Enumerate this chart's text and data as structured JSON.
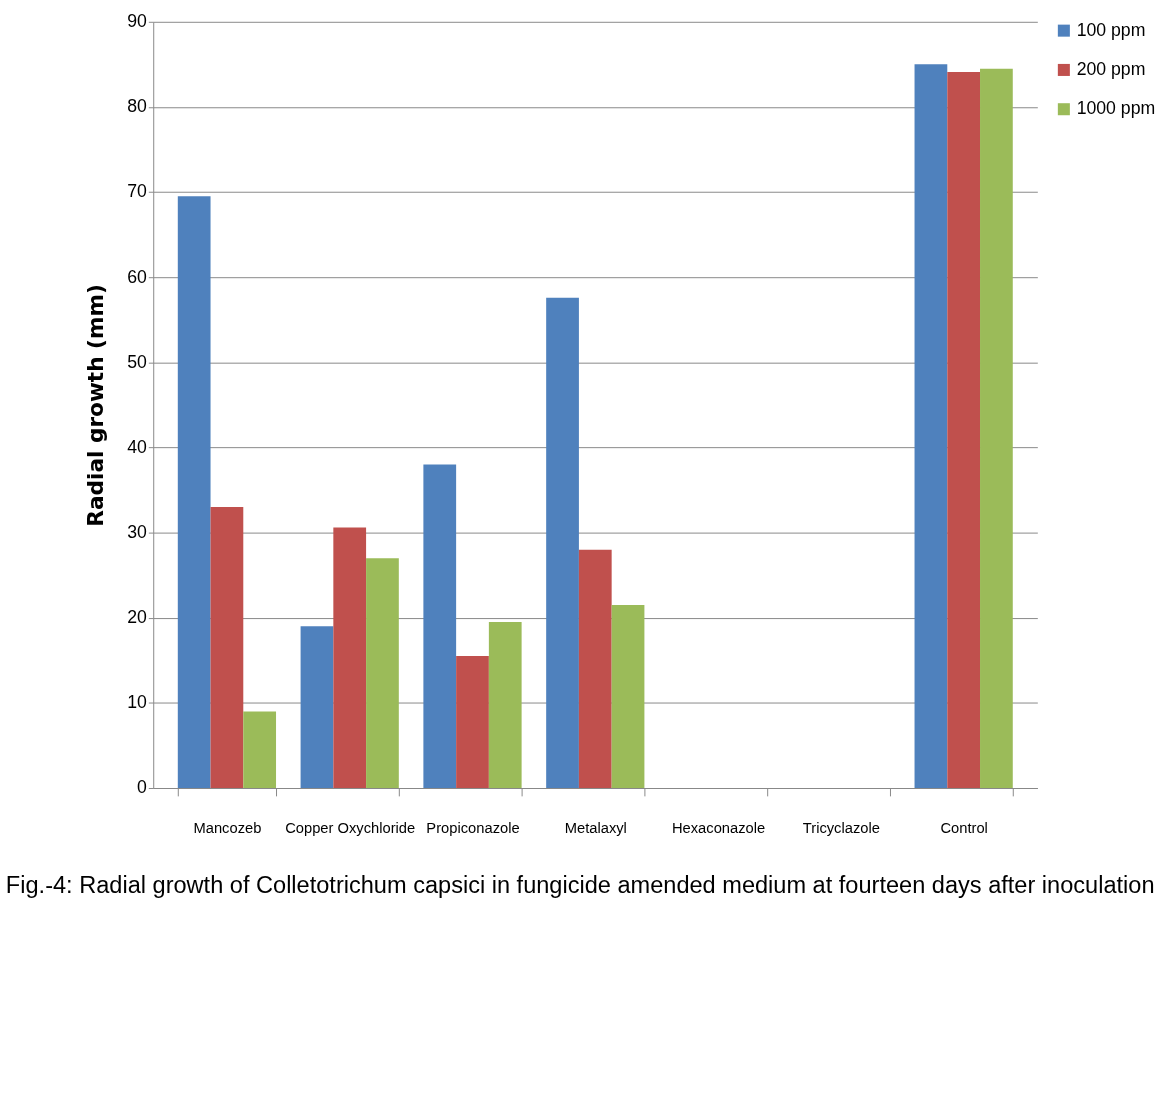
{
  "chart_data": {
    "type": "bar",
    "title": "Fig.-4: Radial growth of Colletotrichum capsici in fungicide amended medium at  fourteen days after inoculation",
    "ylabel": "Radial growth (mm)",
    "categories": [
      "Mancozeb",
      "Copper Oxychloride",
      "Propiconazole",
      "Metalaxyl",
      "Hexaconazole",
      "Tricyclazole",
      "Control"
    ],
    "series": [
      {
        "name": "100 ppm",
        "color": "#4f81bd",
        "values": [
          69.5,
          19,
          38,
          57.6,
          0,
          0,
          85
        ]
      },
      {
        "name": "200 ppm",
        "color": "#c0504d",
        "values": [
          33,
          30.6,
          15.5,
          28,
          0,
          0,
          84.1
        ]
      },
      {
        "name": "1000 ppm",
        "color": "#9bbb59",
        "values": [
          9,
          27,
          19.5,
          21.5,
          0,
          0,
          84.5
        ]
      }
    ],
    "ylim": [
      0,
      90
    ],
    "yticks": [
      0,
      10,
      20,
      30,
      40,
      50,
      60,
      70,
      80,
      90
    ],
    "grid": "y",
    "legend": "right"
  }
}
